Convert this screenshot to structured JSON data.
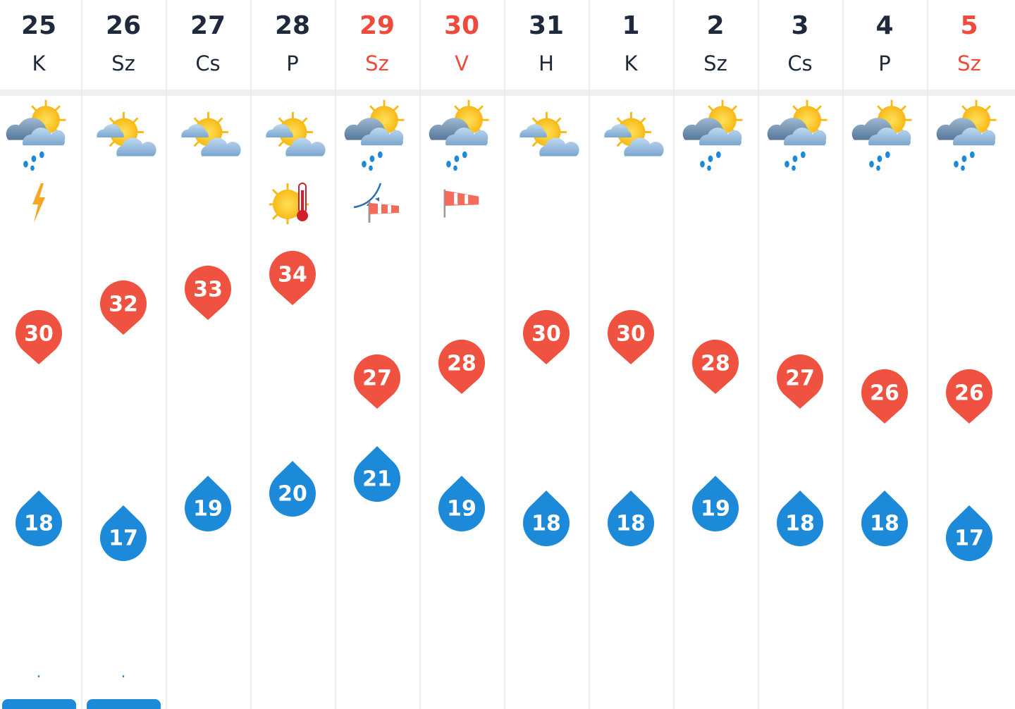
{
  "days": [
    {
      "date": 25,
      "day": "K",
      "weekend": false,
      "max": 30,
      "min": 18,
      "precip": "."
    },
    {
      "date": 26,
      "day": "Sz",
      "weekend": false,
      "max": 32,
      "min": 17,
      "precip": "."
    },
    {
      "date": 27,
      "day": "Cs",
      "weekend": false,
      "max": 33,
      "min": 19
    },
    {
      "date": 28,
      "day": "P",
      "weekend": false,
      "max": 34,
      "min": 20
    },
    {
      "date": 29,
      "day": "Sz",
      "weekend": true,
      "max": 27,
      "min": 21
    },
    {
      "date": 30,
      "day": "V",
      "weekend": true,
      "max": 28,
      "min": 19
    },
    {
      "date": 31,
      "day": "H",
      "weekend": false,
      "max": 30,
      "min": 18
    },
    {
      "date": 1,
      "day": "K",
      "weekend": false,
      "max": 30,
      "min": 18
    },
    {
      "date": 2,
      "day": "Sz",
      "weekend": false,
      "max": 28,
      "min": 19
    },
    {
      "date": 3,
      "day": "Cs",
      "weekend": false,
      "max": 27,
      "min": 18
    },
    {
      "date": 4,
      "day": "P",
      "weekend": false,
      "max": 26,
      "min": 18
    },
    {
      "date": 5,
      "day": "Sz",
      "weekend": true,
      "max": 26,
      "min": 17
    }
  ]
}
